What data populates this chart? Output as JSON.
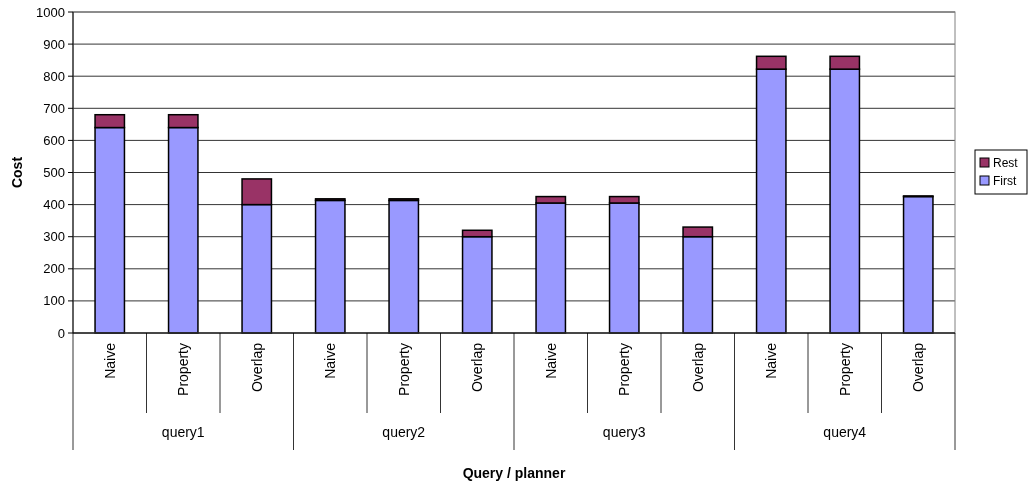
{
  "chart_data": {
    "type": "bar",
    "stacked": true,
    "xlabel": "Query / planner",
    "ylabel": "Cost",
    "categories": [
      "Naive",
      "Property",
      "Overlap",
      "Naive",
      "Property",
      "Overlap",
      "Naive",
      "Property",
      "Overlap",
      "Naive",
      "Property",
      "Overlap"
    ],
    "series": [
      {
        "name": "First",
        "color": "#9999ff",
        "values": [
          640,
          640,
          400,
          413,
          413,
          300,
          405,
          405,
          300,
          822,
          822,
          425
        ]
      },
      {
        "name": "Rest",
        "color": "#993366",
        "values": [
          40,
          40,
          80,
          5,
          5,
          20,
          20,
          20,
          30,
          40,
          40,
          2
        ]
      }
    ],
    "annotations": [
      "query1",
      "query2",
      "query3",
      "query4"
    ],
    "ylim": [
      0,
      1000
    ],
    "yticks": [
      0,
      100,
      200,
      300,
      400,
      500,
      600,
      700,
      800,
      900,
      1000
    ],
    "grid": "y",
    "legend": "right"
  }
}
